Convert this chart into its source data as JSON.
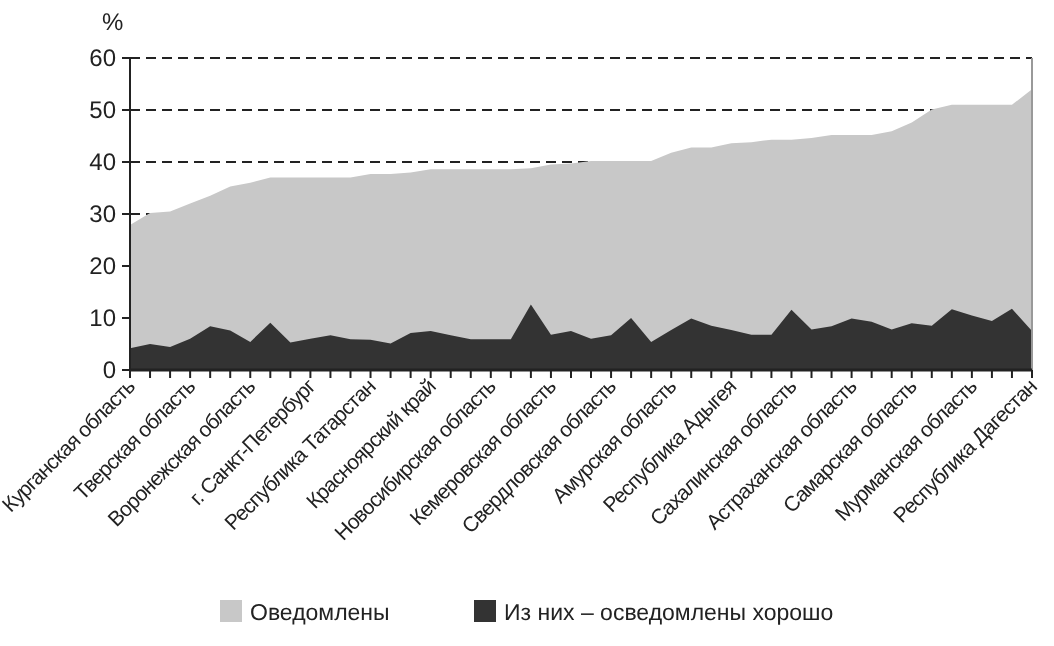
{
  "chart_data": {
    "type": "area",
    "ylabel": "%",
    "categories": [
      "Курганская область",
      null,
      null,
      "Тверская область",
      null,
      null,
      "Воронежская область",
      null,
      null,
      "г. Санкт-Петербург",
      null,
      null,
      "Республика Татарстан",
      null,
      null,
      "Красноярский край",
      null,
      null,
      "Новосибирская область",
      null,
      null,
      "Кемеровская область",
      null,
      null,
      "Свердловская область",
      null,
      null,
      "Амурская область",
      null,
      null,
      "Республика Адыгея",
      null,
      null,
      "Сахалинская область",
      null,
      null,
      "Астраханская область",
      null,
      null,
      "Самарская область",
      null,
      null,
      "Мурманская область",
      null,
      null,
      "Республика Дагестан"
    ],
    "series": [
      {
        "name": "Оведомлены",
        "color": "#c8c8c8",
        "values": [
          27.9,
          30.2,
          30.5,
          32,
          33.5,
          35.3,
          36,
          37,
          37,
          37,
          37,
          37,
          37.7,
          37.7,
          38,
          38.6,
          38.6,
          38.6,
          38.6,
          38.6,
          38.8,
          39.5,
          39.7,
          40.2,
          40.2,
          40.2,
          40.2,
          41.8,
          42.8,
          42.8,
          43.6,
          43.8,
          44.3,
          44.3,
          44.6,
          45.2,
          45.2,
          45.2,
          45.9,
          47.6,
          50.1,
          51,
          51,
          51,
          51,
          54
        ]
      },
      {
        "name": "Из них – осведомлены хорошо",
        "color": "#333333",
        "values": [
          4.2,
          5,
          4.4,
          6,
          8.4,
          7.6,
          5.4,
          9.1,
          5.3,
          6,
          6.7,
          5.9,
          5.8,
          5.1,
          7.1,
          7.5,
          6.7,
          5.9,
          5.9,
          5.9,
          12.6,
          6.8,
          7.5,
          6,
          6.7,
          10,
          5.4,
          7.7,
          9.9,
          8.5,
          7.7,
          6.8,
          6.8,
          11.6,
          7.8,
          8.4,
          9.9,
          9.3,
          7.8,
          9,
          8.5,
          11.7,
          10.5,
          9.4,
          11.8,
          7.5
        ]
      }
    ],
    "ylim": [
      0,
      60
    ],
    "yticks": [
      0,
      10,
      20,
      30,
      40,
      50,
      60
    ],
    "grid": "y",
    "legend": "bottom"
  }
}
